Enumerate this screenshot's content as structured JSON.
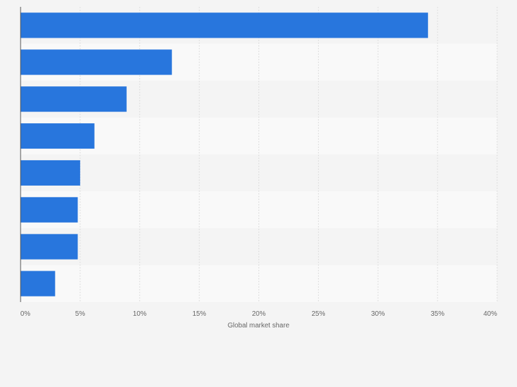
{
  "chart_data": {
    "type": "bar",
    "orientation": "horizontal",
    "categories": [
      "",
      "",
      "",
      "",
      "",
      "",
      "",
      ""
    ],
    "values": [
      34.2,
      12.7,
      8.9,
      6.2,
      5.0,
      4.8,
      4.8,
      2.9
    ],
    "xlabel": "Global market share",
    "ylabel": "",
    "xlim": [
      0,
      40
    ],
    "ticks": [
      "0%",
      "5%",
      "10%",
      "15%",
      "20%",
      "25%",
      "30%",
      "35%",
      "40%"
    ],
    "tick_values": [
      0,
      5,
      10,
      15,
      20,
      25,
      30,
      35,
      40
    ],
    "grid": true,
    "bar_color": "#2876dd",
    "band_colors": [
      "#f4f4f4",
      "#f9f9f9"
    ],
    "gridline_color": "#dddddd",
    "text_color": "#666666"
  }
}
